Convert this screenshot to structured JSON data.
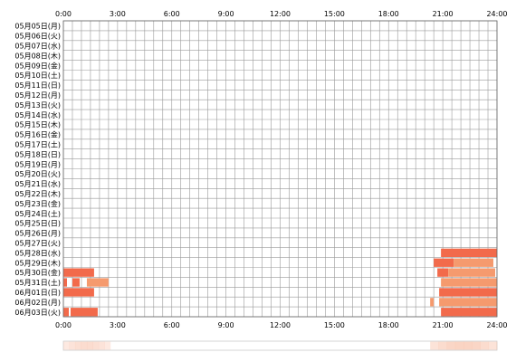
{
  "chart_data": {
    "type": "heatmap",
    "title": "",
    "xlabel": "",
    "ylabel": "",
    "x_range_hours": [
      0,
      24
    ],
    "x_ticks": [
      "0:00",
      "3:00",
      "6:00",
      "9:00",
      "12:00",
      "15:00",
      "18:00",
      "21:00",
      "24:00"
    ],
    "grid": true,
    "colors": {
      "grid": "#9a9a9a",
      "frame": "#666666",
      "activity_dark": "#f26a4b",
      "activity_light": "#f59a6e",
      "summary_peak": "#f8c0a8",
      "summary_low": "#fdeee6"
    },
    "days": [
      "05月05日(月)",
      "05月06日(火)",
      "05月07日(水)",
      "05月08日(木)",
      "05月09日(金)",
      "05月10日(土)",
      "05月11日(日)",
      "05月12日(月)",
      "05月13日(火)",
      "05月14日(水)",
      "05月15日(木)",
      "05月16日(金)",
      "05月17日(土)",
      "05月18日(日)",
      "05月19日(月)",
      "05月20日(火)",
      "05月21日(水)",
      "05月22日(木)",
      "05月23日(金)",
      "05月24日(土)",
      "05月25日(日)",
      "05月26日(月)",
      "05月27日(火)",
      "05月28日(水)",
      "05月29日(木)",
      "05月30日(金)",
      "05月31日(土)",
      "06月01日(日)",
      "06月02日(月)",
      "06月03日(火)"
    ],
    "activity": [
      {
        "day": "05月28日(水)",
        "start": 20.9,
        "end": 24.0,
        "tone": "dark"
      },
      {
        "day": "05月29日(木)",
        "start": 20.5,
        "end": 21.6,
        "tone": "dark"
      },
      {
        "day": "05月29日(木)",
        "start": 21.6,
        "end": 23.8,
        "tone": "light"
      },
      {
        "day": "05月30日(金)",
        "start": 0.0,
        "end": 1.7,
        "tone": "dark"
      },
      {
        "day": "05月30日(金)",
        "start": 20.7,
        "end": 21.3,
        "tone": "dark"
      },
      {
        "day": "05月30日(金)",
        "start": 21.3,
        "end": 23.9,
        "tone": "light"
      },
      {
        "day": "05月31日(土)",
        "start": 0.0,
        "end": 0.2,
        "tone": "dark"
      },
      {
        "day": "05月31日(土)",
        "start": 0.5,
        "end": 0.9,
        "tone": "dark"
      },
      {
        "day": "05月31日(土)",
        "start": 1.3,
        "end": 2.5,
        "tone": "light"
      },
      {
        "day": "05月31日(土)",
        "start": 20.9,
        "end": 24.0,
        "tone": "light"
      },
      {
        "day": "06月01日(日)",
        "start": 0.0,
        "end": 1.7,
        "tone": "dark"
      },
      {
        "day": "06月01日(日)",
        "start": 20.8,
        "end": 24.0,
        "tone": "dark"
      },
      {
        "day": "06月02日(月)",
        "start": 20.3,
        "end": 20.5,
        "tone": "light"
      },
      {
        "day": "06月02日(月)",
        "start": 20.8,
        "end": 24.0,
        "tone": "light"
      },
      {
        "day": "06月03日(火)",
        "start": 0.0,
        "end": 0.3,
        "tone": "dark"
      },
      {
        "day": "06月03日(火)",
        "start": 0.4,
        "end": 1.9,
        "tone": "dark"
      },
      {
        "day": "06月03日(火)",
        "start": 20.9,
        "end": 24.0,
        "tone": "dark"
      }
    ],
    "summary": [
      {
        "start": 0.0,
        "end": 2.6,
        "level": 0.55
      },
      {
        "start": 20.3,
        "end": 24.0,
        "level": 0.7
      }
    ]
  }
}
